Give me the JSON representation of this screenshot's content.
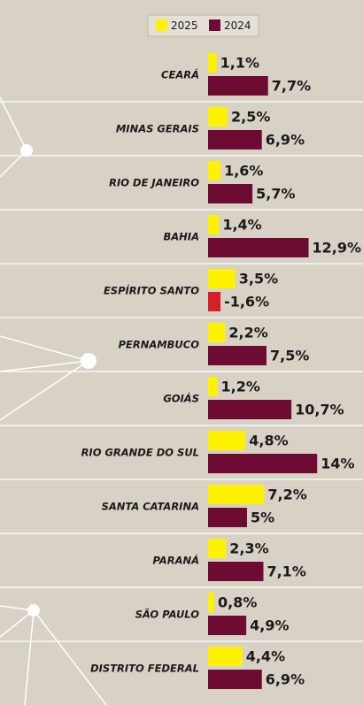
{
  "chart_data": {
    "type": "bar",
    "orientation": "horizontal",
    "categories": [
      "CEARÁ",
      "MINAS GERAIS",
      "RIO DE JANEIRO",
      "BAHIA",
      "ESPÍRITO SANTO",
      "PERNAMBUCO",
      "GOIÁS",
      "RIO GRANDE DO SUL",
      "SANTA CATARINA",
      "PARANÁ",
      "SÃO PAULO",
      "DISTRITO FEDERAL"
    ],
    "series": [
      {
        "name": "2025",
        "color": "#fff200",
        "values": [
          1.1,
          2.5,
          1.6,
          1.4,
          3.5,
          2.2,
          1.2,
          4.8,
          7.2,
          2.3,
          0.8,
          4.4
        ],
        "value_labels": [
          "1,1%",
          "2,5%",
          "1,6%",
          "1,4%",
          "3,5%",
          "2,2%",
          "1,2%",
          "4,8%",
          "7,2%",
          "2,3%",
          "0,8%",
          "4,4%"
        ]
      },
      {
        "name": "2024",
        "color": "#6e0b32",
        "values": [
          7.7,
          6.9,
          5.7,
          12.9,
          -1.6,
          7.5,
          10.7,
          14,
          5,
          7.1,
          4.9,
          6.9
        ],
        "value_labels": [
          "7,7%",
          "6,9%",
          "5,7%",
          "12,9%",
          "-1,6%",
          "7,5%",
          "10,7%",
          "14%",
          "5%",
          "7,1%",
          "4,9%",
          "6,9%"
        ]
      }
    ],
    "negative_color": "#d62027",
    "legend": "top"
  }
}
